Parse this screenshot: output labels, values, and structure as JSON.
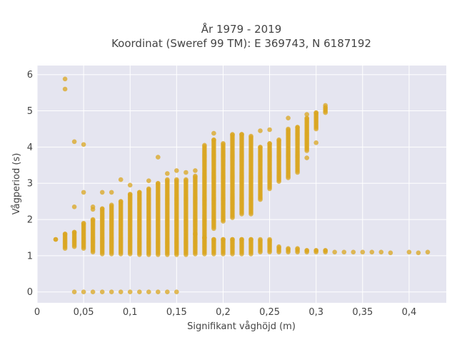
{
  "chart_data": {
    "type": "scatter",
    "title_line1": "År 1979 - 2019",
    "title_line2": "Koordinat (Sweref 99 TM): E 369743, N 6187192",
    "xlabel": "Signifikant våghöjd (m)",
    "ylabel": "Vågperiod (s)",
    "xlim": [
      0,
      0.44
    ],
    "ylim": [
      -0.3,
      6.25
    ],
    "x_ticks": [
      0,
      0.05,
      0.1,
      0.15,
      0.2,
      0.25,
      0.3,
      0.35,
      0.4
    ],
    "x_tick_labels": [
      "0",
      "0,05",
      "0,1",
      "0,15",
      "0,2",
      "0,25",
      "0,3",
      "0,35",
      "0,4"
    ],
    "y_ticks": [
      0,
      1,
      2,
      3,
      4,
      5,
      6
    ],
    "y_tick_labels": [
      "0",
      "1",
      "2",
      "3",
      "4",
      "5",
      "6"
    ],
    "grid": true,
    "marker_color": "#DAA520",
    "plot_bg": "#E5E5F0",
    "columns": [
      {
        "x": 0.02,
        "ymin": 1.45,
        "ymax": 1.45
      },
      {
        "x": 0.03,
        "ymin": 1.2,
        "ymax": 1.6
      },
      {
        "x": 0.04,
        "ymin": 1.25,
        "ymax": 1.65
      },
      {
        "x": 0.05,
        "ymin": 1.2,
        "ymax": 1.9
      },
      {
        "x": 0.06,
        "ymin": 1.1,
        "ymax": 2.0
      },
      {
        "x": 0.07,
        "ymin": 1.05,
        "ymax": 2.3
      },
      {
        "x": 0.08,
        "ymin": 1.05,
        "ymax": 2.4
      },
      {
        "x": 0.09,
        "ymin": 1.05,
        "ymax": 2.5
      },
      {
        "x": 0.1,
        "ymin": 1.05,
        "ymax": 2.7
      },
      {
        "x": 0.11,
        "ymin": 1.03,
        "ymax": 2.75
      },
      {
        "x": 0.12,
        "ymin": 1.03,
        "ymax": 2.85
      },
      {
        "x": 0.13,
        "ymin": 1.03,
        "ymax": 3.0
      },
      {
        "x": 0.14,
        "ymin": 1.03,
        "ymax": 3.1
      },
      {
        "x": 0.15,
        "ymin": 1.03,
        "ymax": 3.1
      },
      {
        "x": 0.16,
        "ymin": 1.03,
        "ymax": 3.1
      },
      {
        "x": 0.17,
        "ymin": 1.05,
        "ymax": 3.2
      },
      {
        "x": 0.18,
        "ymin": 1.5,
        "ymax": 4.05
      },
      {
        "x": 0.19,
        "ymin": 1.75,
        "ymax": 4.2
      },
      {
        "x": 0.2,
        "ymin": 1.95,
        "ymax": 4.1
      },
      {
        "x": 0.21,
        "ymin": 2.05,
        "ymax": 4.35
      },
      {
        "x": 0.22,
        "ymin": 2.15,
        "ymax": 4.35
      },
      {
        "x": 0.23,
        "ymin": 2.15,
        "ymax": 4.3
      },
      {
        "x": 0.24,
        "ymin": 2.55,
        "ymax": 4.0
      },
      {
        "x": 0.25,
        "ymin": 2.85,
        "ymax": 4.1
      },
      {
        "x": 0.26,
        "ymin": 3.05,
        "ymax": 4.2
      },
      {
        "x": 0.27,
        "ymin": 3.15,
        "ymax": 4.5
      },
      {
        "x": 0.28,
        "ymin": 3.3,
        "ymax": 4.55
      },
      {
        "x": 0.29,
        "ymin": 3.9,
        "ymax": 4.8
      },
      {
        "x": 0.3,
        "ymin": 4.5,
        "ymax": 4.95
      },
      {
        "x": 0.31,
        "ymin": 4.95,
        "ymax": 5.1
      }
    ],
    "lower_band": [
      {
        "x": 0.18,
        "ymin": 1.05,
        "ymax": 1.5
      },
      {
        "x": 0.19,
        "ymin": 1.05,
        "ymax": 1.45
      },
      {
        "x": 0.2,
        "ymin": 1.05,
        "ymax": 1.45
      },
      {
        "x": 0.21,
        "ymin": 1.05,
        "ymax": 1.45
      },
      {
        "x": 0.22,
        "ymin": 1.05,
        "ymax": 1.45
      },
      {
        "x": 0.23,
        "ymin": 1.05,
        "ymax": 1.45
      },
      {
        "x": 0.24,
        "ymin": 1.1,
        "ymax": 1.45
      },
      {
        "x": 0.25,
        "ymin": 1.1,
        "ymax": 1.45
      },
      {
        "x": 0.26,
        "ymin": 1.1,
        "ymax": 1.25
      },
      {
        "x": 0.27,
        "ymin": 1.1,
        "ymax": 1.2
      },
      {
        "x": 0.28,
        "ymin": 1.1,
        "ymax": 1.2
      },
      {
        "x": 0.29,
        "ymin": 1.1,
        "ymax": 1.15
      },
      {
        "x": 0.3,
        "ymin": 1.1,
        "ymax": 1.15
      },
      {
        "x": 0.31,
        "ymin": 1.1,
        "ymax": 1.15
      }
    ],
    "zero_row": {
      "xmin": 0.04,
      "xmax": 0.15,
      "step": 0.01,
      "y": 0
    },
    "points": [
      {
        "x": 0.03,
        "y": 5.88
      },
      {
        "x": 0.03,
        "y": 5.6
      },
      {
        "x": 0.04,
        "y": 4.15
      },
      {
        "x": 0.05,
        "y": 4.07
      },
      {
        "x": 0.05,
        "y": 2.75
      },
      {
        "x": 0.04,
        "y": 2.35
      },
      {
        "x": 0.06,
        "y": 2.35
      },
      {
        "x": 0.06,
        "y": 2.28
      },
      {
        "x": 0.07,
        "y": 2.75
      },
      {
        "x": 0.08,
        "y": 2.75
      },
      {
        "x": 0.09,
        "y": 3.1
      },
      {
        "x": 0.1,
        "y": 2.95
      },
      {
        "x": 0.12,
        "y": 3.07
      },
      {
        "x": 0.13,
        "y": 3.72
      },
      {
        "x": 0.14,
        "y": 3.27
      },
      {
        "x": 0.15,
        "y": 3.35
      },
      {
        "x": 0.16,
        "y": 3.3
      },
      {
        "x": 0.17,
        "y": 3.35
      },
      {
        "x": 0.19,
        "y": 4.38
      },
      {
        "x": 0.25,
        "y": 4.48
      },
      {
        "x": 0.24,
        "y": 4.45
      },
      {
        "x": 0.27,
        "y": 4.8
      },
      {
        "x": 0.29,
        "y": 4.9
      },
      {
        "x": 0.3,
        "y": 4.12
      },
      {
        "x": 0.31,
        "y": 5.15
      },
      {
        "x": 0.29,
        "y": 3.7
      },
      {
        "x": 0.17,
        "y": 1.6
      },
      {
        "x": 0.32,
        "y": 1.1
      },
      {
        "x": 0.33,
        "y": 1.1
      },
      {
        "x": 0.34,
        "y": 1.1
      },
      {
        "x": 0.35,
        "y": 1.1
      },
      {
        "x": 0.36,
        "y": 1.1
      },
      {
        "x": 0.37,
        "y": 1.1
      },
      {
        "x": 0.38,
        "y": 1.08
      },
      {
        "x": 0.4,
        "y": 1.1
      },
      {
        "x": 0.41,
        "y": 1.08
      },
      {
        "x": 0.42,
        "y": 1.1
      }
    ]
  }
}
